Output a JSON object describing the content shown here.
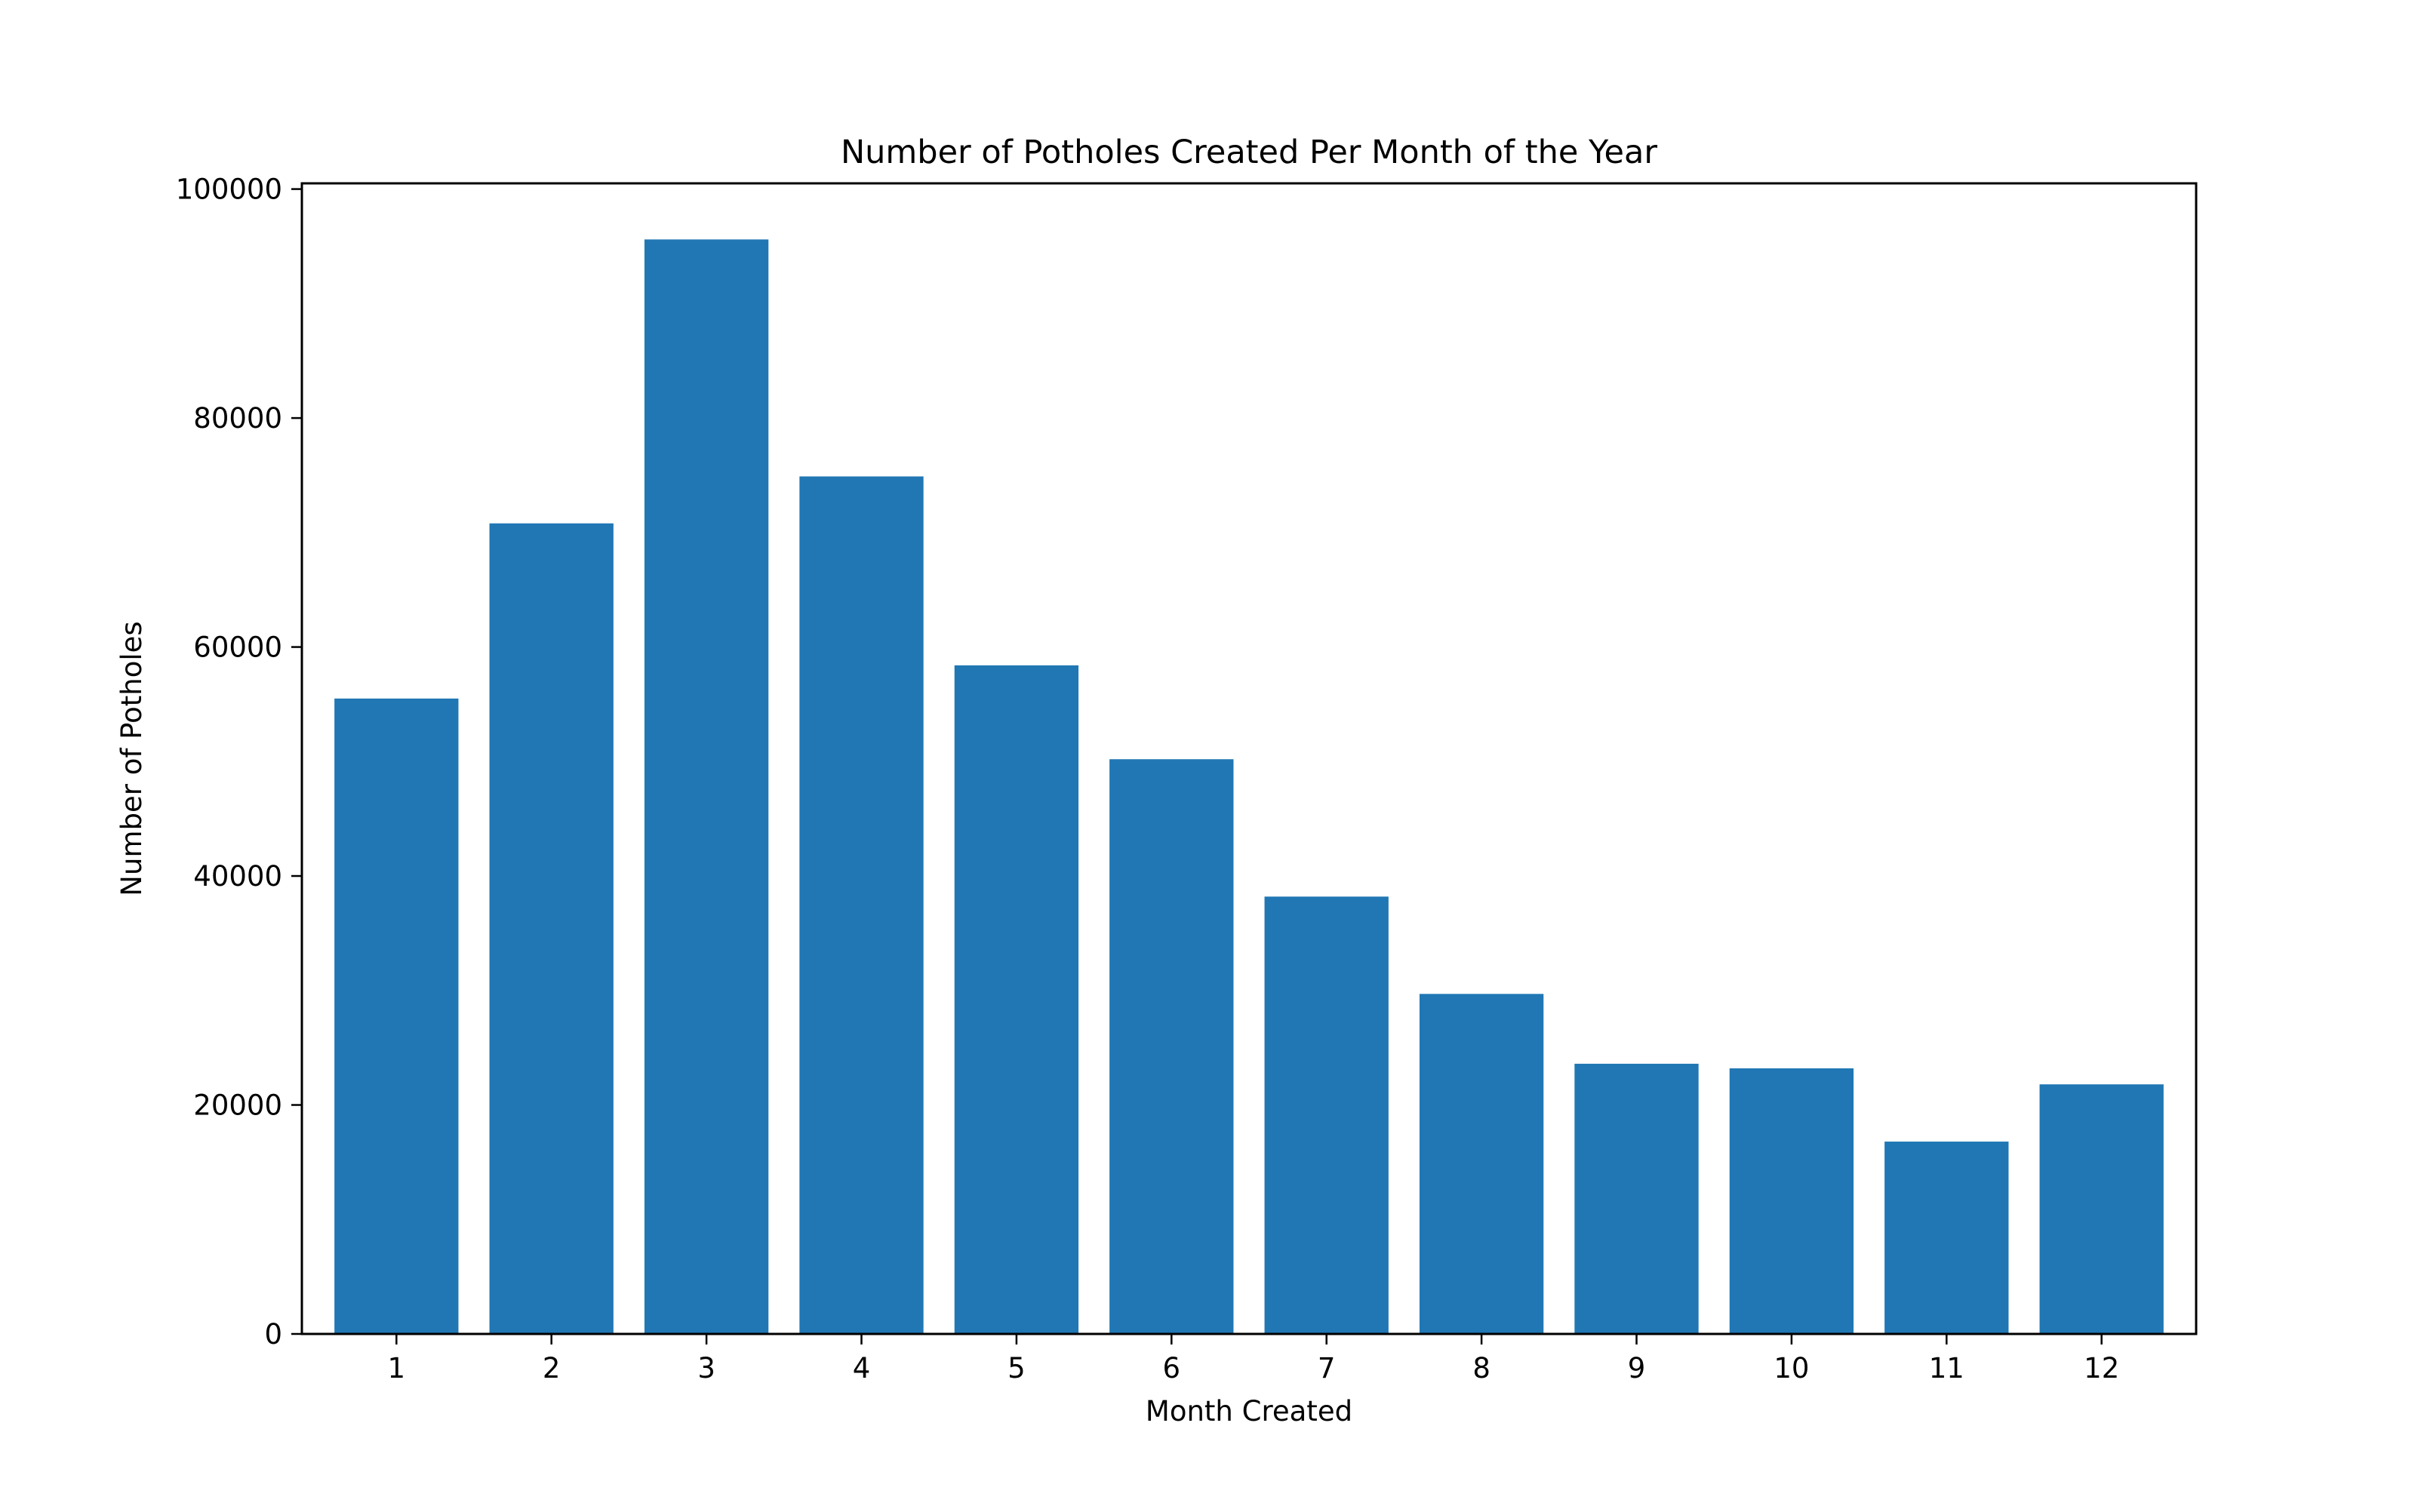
{
  "chart_data": {
    "type": "bar",
    "title": "Number of Potholes Created Per Month of the Year",
    "xlabel": "Month Created",
    "ylabel": "Number of Potholes",
    "categories": [
      "1",
      "2",
      "3",
      "4",
      "5",
      "6",
      "7",
      "8",
      "9",
      "10",
      "11",
      "12"
    ],
    "values": [
      55500,
      70800,
      95600,
      74900,
      58400,
      50200,
      38200,
      29700,
      23600,
      23200,
      16800,
      21800
    ],
    "ylim": [
      0,
      100500
    ],
    "yticks": [
      0,
      20000,
      40000,
      60000,
      80000,
      100000
    ],
    "ytick_labels": [
      "0",
      "20000",
      "40000",
      "60000",
      "80000",
      "100000"
    ],
    "grid": false,
    "colors": {
      "bar": "#2077b4",
      "axis": "#000000",
      "background": "#ffffff"
    }
  }
}
